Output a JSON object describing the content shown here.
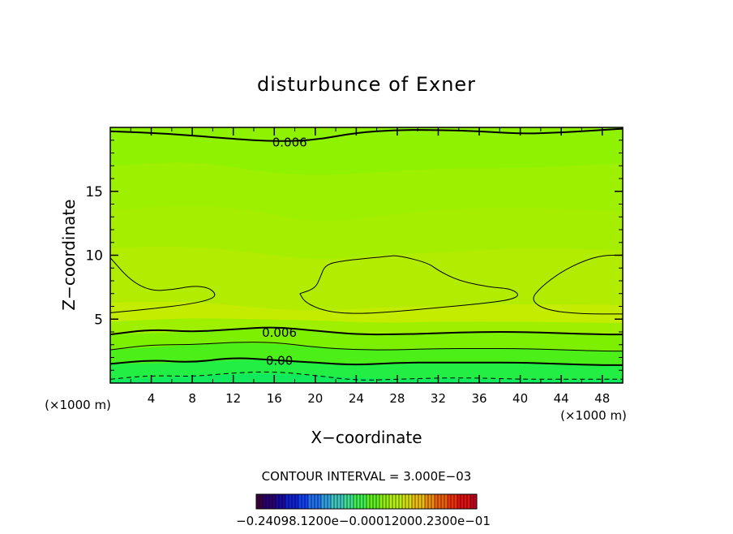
{
  "chart_data": {
    "type": "contour",
    "title": "disturbunce of Exner",
    "xlabel": "X−coordinate",
    "ylabel": "Z−coordinate",
    "x_unit_left": "(×1000 m)",
    "x_unit_right": "(×1000 m)",
    "xlim": [
      0,
      50
    ],
    "ylim": [
      0,
      20
    ],
    "x_ticks": [
      4,
      8,
      12,
      16,
      20,
      24,
      28,
      32,
      36,
      40,
      44,
      48
    ],
    "y_ticks": [
      5,
      10,
      15
    ],
    "contour_interval_text": "CONTOUR INTERVAL = 3.000E−03",
    "contour_labels": [
      {
        "text": "0.006",
        "x": 17.5,
        "z": 18.9
      },
      {
        "text": "0.006",
        "x": 16.5,
        "z": 4.0
      },
      {
        "text": "0.00",
        "x": 16.5,
        "z": 1.8
      }
    ],
    "contours": [
      {
        "level": 0.006,
        "style": "thick",
        "points": [
          [
            0,
            19.7
          ],
          [
            6,
            19.5
          ],
          [
            12,
            19.1
          ],
          [
            16,
            18.9
          ],
          [
            20,
            19.0
          ],
          [
            24,
            19.6
          ],
          [
            28,
            19.8
          ],
          [
            32,
            19.8
          ],
          [
            36,
            19.7
          ],
          [
            40,
            19.5
          ],
          [
            44,
            19.6
          ],
          [
            48,
            19.8
          ],
          [
            50,
            19.9
          ]
        ]
      },
      {
        "level": 0.003,
        "style": "thin",
        "points": [
          [
            0,
            5.5
          ],
          [
            4,
            5.8
          ],
          [
            8,
            6.2
          ],
          [
            10,
            6.6
          ],
          [
            10.3,
            7.0
          ],
          [
            9.5,
            7.5
          ],
          [
            8,
            7.6
          ],
          [
            6,
            7.3
          ],
          [
            4,
            7.2
          ],
          [
            2,
            8.0
          ],
          [
            0,
            9.8
          ]
        ]
      },
      {
        "level": 0.003,
        "style": "thin",
        "points": [
          [
            18.5,
            7.0
          ],
          [
            20,
            7.4
          ],
          [
            20.5,
            8.3
          ],
          [
            21,
            9.3
          ],
          [
            23,
            9.6
          ],
          [
            27,
            9.9
          ],
          [
            28,
            10.0
          ],
          [
            31,
            9.4
          ],
          [
            32,
            8.8
          ],
          [
            34,
            8.0
          ],
          [
            37,
            7.5
          ],
          [
            39,
            7.4
          ],
          [
            40,
            6.9
          ],
          [
            39,
            6.5
          ],
          [
            36,
            6.2
          ],
          [
            32,
            5.9
          ],
          [
            28,
            5.6
          ],
          [
            24,
            5.4
          ],
          [
            21,
            5.6
          ],
          [
            19,
            6.3
          ],
          [
            18.5,
            7.0
          ]
        ]
      },
      {
        "level": 0.003,
        "style": "thin",
        "points": [
          [
            50,
            5.4
          ],
          [
            46,
            5.4
          ],
          [
            42.5,
            5.7
          ],
          [
            41,
            6.5
          ],
          [
            42,
            7.5
          ],
          [
            44,
            8.7
          ],
          [
            46,
            9.5
          ],
          [
            48,
            10.0
          ],
          [
            50,
            10.0
          ]
        ]
      },
      {
        "level": 0.006,
        "style": "thick",
        "points": [
          [
            0,
            3.8
          ],
          [
            4,
            4.2
          ],
          [
            8,
            4.0
          ],
          [
            12,
            4.2
          ],
          [
            16,
            4.4
          ],
          [
            20,
            4.1
          ],
          [
            24,
            3.8
          ],
          [
            28,
            3.8
          ],
          [
            32,
            3.9
          ],
          [
            36,
            4.0
          ],
          [
            40,
            4.0
          ],
          [
            44,
            3.9
          ],
          [
            48,
            3.8
          ],
          [
            50,
            3.8
          ]
        ]
      },
      {
        "level": 0.003,
        "style": "thin",
        "points": [
          [
            0,
            2.6
          ],
          [
            4,
            3.0
          ],
          [
            8,
            3.0
          ],
          [
            12,
            3.2
          ],
          [
            16,
            3.2
          ],
          [
            20,
            2.8
          ],
          [
            24,
            2.6
          ],
          [
            28,
            2.6
          ],
          [
            32,
            2.7
          ],
          [
            36,
            2.7
          ],
          [
            40,
            2.7
          ],
          [
            44,
            2.6
          ],
          [
            48,
            2.5
          ],
          [
            50,
            2.5
          ]
        ]
      },
      {
        "level": 0.0,
        "style": "thick",
        "points": [
          [
            0,
            1.5
          ],
          [
            4,
            1.8
          ],
          [
            8,
            1.6
          ],
          [
            12,
            2.0
          ],
          [
            16,
            1.8
          ],
          [
            20,
            1.6
          ],
          [
            24,
            1.4
          ],
          [
            28,
            1.6
          ],
          [
            32,
            1.6
          ],
          [
            36,
            1.6
          ],
          [
            40,
            1.6
          ],
          [
            44,
            1.5
          ],
          [
            48,
            1.4
          ],
          [
            50,
            1.4
          ]
        ]
      },
      {
        "level": -0.003,
        "style": "dashed",
        "points": [
          [
            0,
            0.3
          ],
          [
            4,
            0.6
          ],
          [
            8,
            0.5
          ],
          [
            12,
            0.8
          ],
          [
            16,
            0.9
          ],
          [
            20,
            0.6
          ],
          [
            24,
            0.2
          ],
          [
            28,
            0.3
          ],
          [
            32,
            0.4
          ],
          [
            36,
            0.4
          ],
          [
            40,
            0.3
          ],
          [
            44,
            0.3
          ],
          [
            48,
            0.3
          ],
          [
            50,
            0.3
          ]
        ]
      }
    ],
    "fill_bands": [
      {
        "color": "#9cf000",
        "points": [
          [
            0,
            17
          ],
          [
            8,
            17.4
          ],
          [
            14,
            16.6
          ],
          [
            20,
            16.2
          ],
          [
            26,
            16.5
          ],
          [
            32,
            16.8
          ],
          [
            40,
            16.8
          ],
          [
            50,
            17.2
          ]
        ]
      },
      {
        "color": "#a6ee00",
        "points": [
          [
            0,
            13.5
          ],
          [
            8,
            14
          ],
          [
            14,
            13.5
          ],
          [
            20,
            12.5
          ],
          [
            26,
            13
          ],
          [
            32,
            13.6
          ],
          [
            40,
            13.8
          ],
          [
            50,
            13.4
          ]
        ]
      },
      {
        "color": "#b2ec00",
        "points": [
          [
            0,
            10.6
          ],
          [
            8,
            10.7
          ],
          [
            14,
            10.2
          ],
          [
            20,
            9.6
          ],
          [
            26,
            10
          ],
          [
            32,
            10.2
          ],
          [
            40,
            10.6
          ],
          [
            50,
            10.4
          ]
        ]
      },
      {
        "color": "#c4ec00",
        "points": [
          [
            0,
            6.3
          ],
          [
            8,
            6.4
          ],
          [
            14,
            5.9
          ],
          [
            20,
            5.6
          ],
          [
            26,
            5.9
          ],
          [
            32,
            6
          ],
          [
            40,
            6.2
          ],
          [
            50,
            6.1
          ]
        ]
      },
      {
        "color": "#9ef000",
        "points": [
          [
            0,
            4.8
          ],
          [
            8,
            5.1
          ],
          [
            14,
            5
          ],
          [
            20,
            4.9
          ],
          [
            26,
            4.7
          ],
          [
            32,
            4.8
          ],
          [
            40,
            4.8
          ],
          [
            50,
            4.7
          ]
        ]
      },
      {
        "color": "#7cf000",
        "points": [
          [
            0,
            3.8
          ],
          [
            8,
            4
          ],
          [
            14,
            4.3
          ],
          [
            20,
            4.1
          ],
          [
            26,
            3.8
          ],
          [
            32,
            3.9
          ],
          [
            40,
            4
          ],
          [
            50,
            3.8
          ]
        ]
      },
      {
        "color": "#4cf018",
        "points": [
          [
            0,
            2.6
          ],
          [
            8,
            3
          ],
          [
            14,
            3.2
          ],
          [
            20,
            2.8
          ],
          [
            26,
            2.6
          ],
          [
            32,
            2.7
          ],
          [
            40,
            2.7
          ],
          [
            50,
            2.5
          ]
        ]
      },
      {
        "color": "#22ee44",
        "points": [
          [
            0,
            1.5
          ],
          [
            8,
            1.6
          ],
          [
            14,
            1.9
          ],
          [
            20,
            1.6
          ],
          [
            26,
            1.5
          ],
          [
            32,
            1.6
          ],
          [
            40,
            1.6
          ],
          [
            50,
            1.4
          ]
        ]
      },
      {
        "color": "#10ea5c",
        "points": [
          [
            0,
            0.3
          ],
          [
            8,
            0.5
          ],
          [
            14,
            0.8
          ],
          [
            20,
            0.6
          ],
          [
            26,
            0.3
          ],
          [
            32,
            0.4
          ],
          [
            40,
            0.3
          ],
          [
            50,
            0.3
          ]
        ]
      }
    ],
    "base_color": "#8ef200",
    "colorbar": {
      "label_text": "−0.24098.1200e−0.00012000.2300e−01",
      "colors": [
        "#3a0040",
        "#2a0070",
        "#1a0aa0",
        "#1020d0",
        "#1040f0",
        "#2070f0",
        "#30a0e0",
        "#40c8c0",
        "#40e090",
        "#40f050",
        "#60f020",
        "#90f000",
        "#b8f000",
        "#d8e000",
        "#f0c000",
        "#f09000",
        "#f06000",
        "#f03000",
        "#e01010",
        "#c00020"
      ]
    }
  }
}
